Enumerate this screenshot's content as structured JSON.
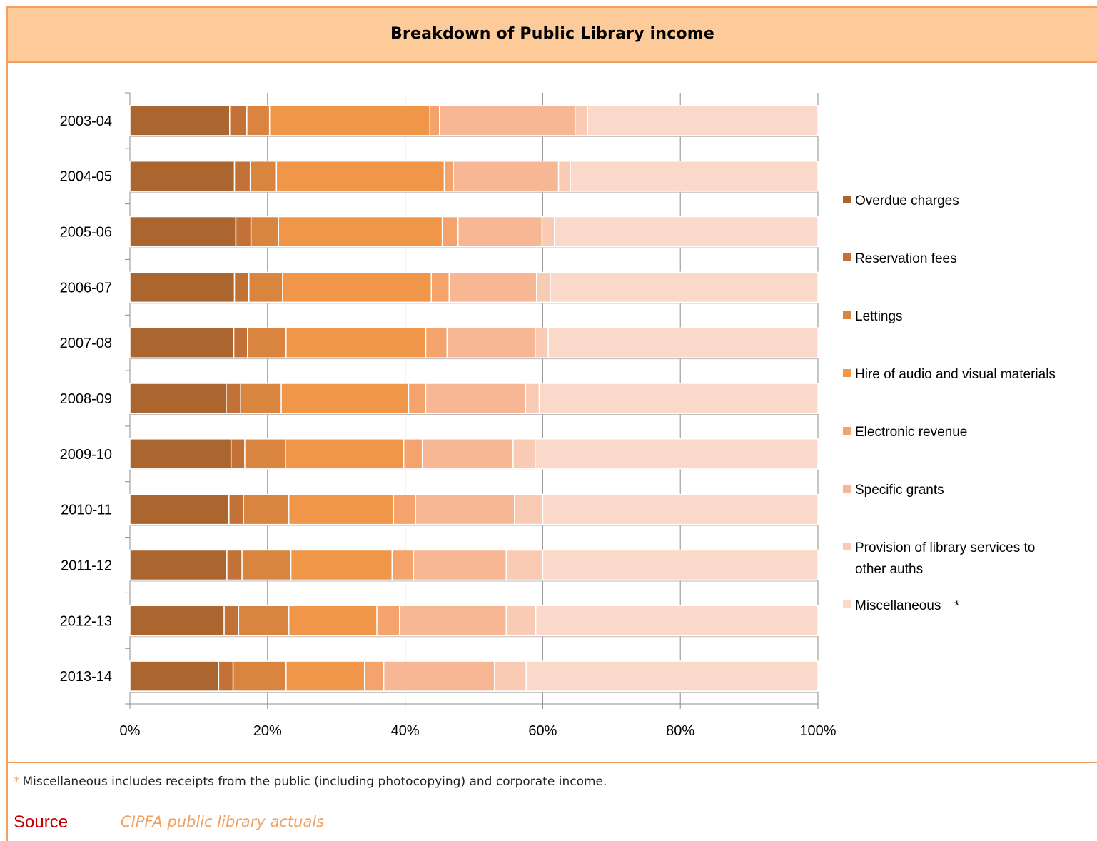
{
  "title": "Breakdown of Public Library income",
  "footnote": {
    "marker": "*",
    "text": "Miscellaneous includes receipts from the public (including photocopying) and corporate income."
  },
  "source": {
    "label": "Source",
    "text": "CIPFA public library actuals"
  },
  "legend_star": "*",
  "legend_star_color": "#f0a060",
  "chart_data": {
    "type": "bar",
    "orientation": "horizontal",
    "stacked": "percent",
    "title": "Breakdown of Public Library income",
    "categories": [
      "2003-04",
      "2004-05",
      "2005-06",
      "2006-07",
      "2007-08",
      "2008-09",
      "2009-10",
      "2010-11",
      "2011-12",
      "2012-13",
      "2013-14"
    ],
    "x_ticks": [
      "0%",
      "20%",
      "40%",
      "60%",
      "80%",
      "100%"
    ],
    "xlim": [
      0,
      100
    ],
    "grid": true,
    "legend_position": "right",
    "series": [
      {
        "name": "Overdue charges",
        "color": "#ab6630",
        "values": [
          14.5,
          15.2,
          15.4,
          15.2,
          15.1,
          14.0,
          14.7,
          14.4,
          14.1,
          13.7,
          12.9
        ]
      },
      {
        "name": "Reservation fees",
        "color": "#c27137",
        "values": [
          2.5,
          2.3,
          2.2,
          2.1,
          2.0,
          2.1,
          2.0,
          2.1,
          2.2,
          2.1,
          2.1
        ]
      },
      {
        "name": "Lettings",
        "color": "#d9843f",
        "values": [
          3.3,
          3.8,
          4.0,
          4.9,
          5.6,
          5.9,
          5.9,
          6.6,
          7.1,
          7.3,
          7.7
        ]
      },
      {
        "name": "Hire of audio and visual materials",
        "color": "#ef9649",
        "values": [
          23.3,
          24.4,
          23.8,
          21.6,
          20.3,
          18.5,
          17.2,
          15.2,
          14.7,
          12.8,
          11.4
        ]
      },
      {
        "name": "Electronic revenue",
        "color": "#f5a36d",
        "values": [
          1.4,
          1.3,
          2.3,
          2.6,
          3.1,
          2.5,
          2.7,
          3.2,
          3.1,
          3.3,
          2.8
        ]
      },
      {
        "name": "Specific grants",
        "color": "#f7b794",
        "values": [
          19.7,
          15.3,
          12.2,
          12.7,
          12.8,
          14.5,
          13.2,
          14.4,
          13.5,
          15.5,
          16.1
        ]
      },
      {
        "name": "Provision of library services to other auths",
        "color": "#f9cbb4",
        "values": [
          1.8,
          1.7,
          1.8,
          2.0,
          1.9,
          2.0,
          3.2,
          4.1,
          5.3,
          4.3,
          4.6
        ]
      },
      {
        "name": "Miscellaneous",
        "color": "#fad9ca",
        "values": [
          33.5,
          36.0,
          38.3,
          38.9,
          39.2,
          40.5,
          41.1,
          40.0,
          40.0,
          41.0,
          42.4
        ]
      }
    ]
  }
}
